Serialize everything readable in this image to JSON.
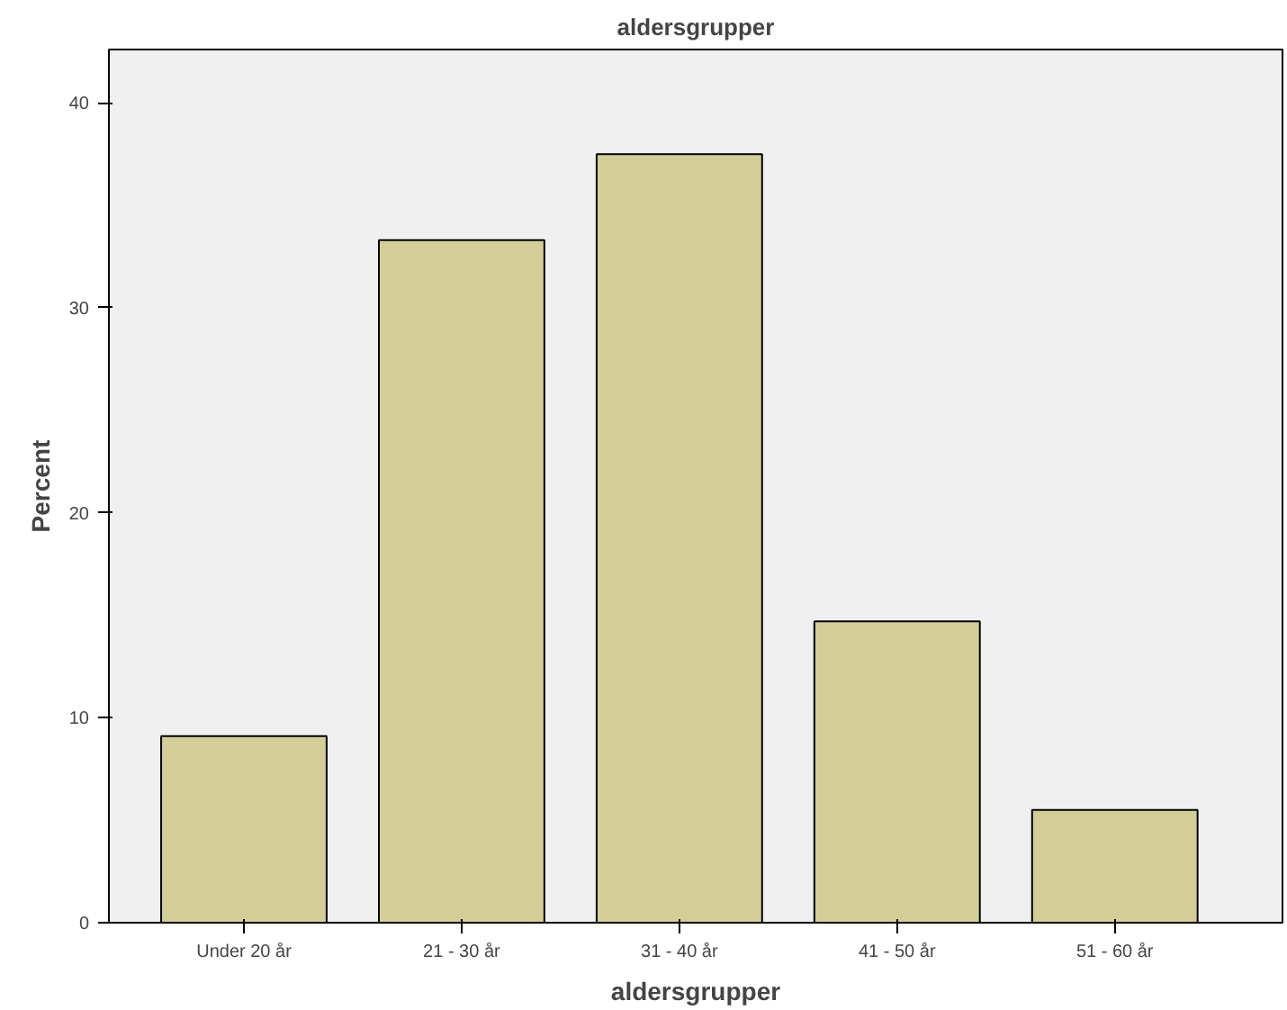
{
  "chart_data": {
    "type": "bar",
    "title": "aldersgrupper",
    "xlabel": "aldersgrupper",
    "ylabel": "Percent",
    "categories": [
      "Under 20 år",
      "21 - 30 år",
      "31 - 40 år",
      "41 - 50 år",
      "51 - 60 år"
    ],
    "values": [
      9.1,
      33.3,
      37.5,
      14.7,
      5.5
    ],
    "color": "#d3ce97",
    "ylim": [
      0,
      42.6
    ],
    "yticks": [
      0,
      10,
      20,
      30,
      40
    ],
    "grid": false
  }
}
